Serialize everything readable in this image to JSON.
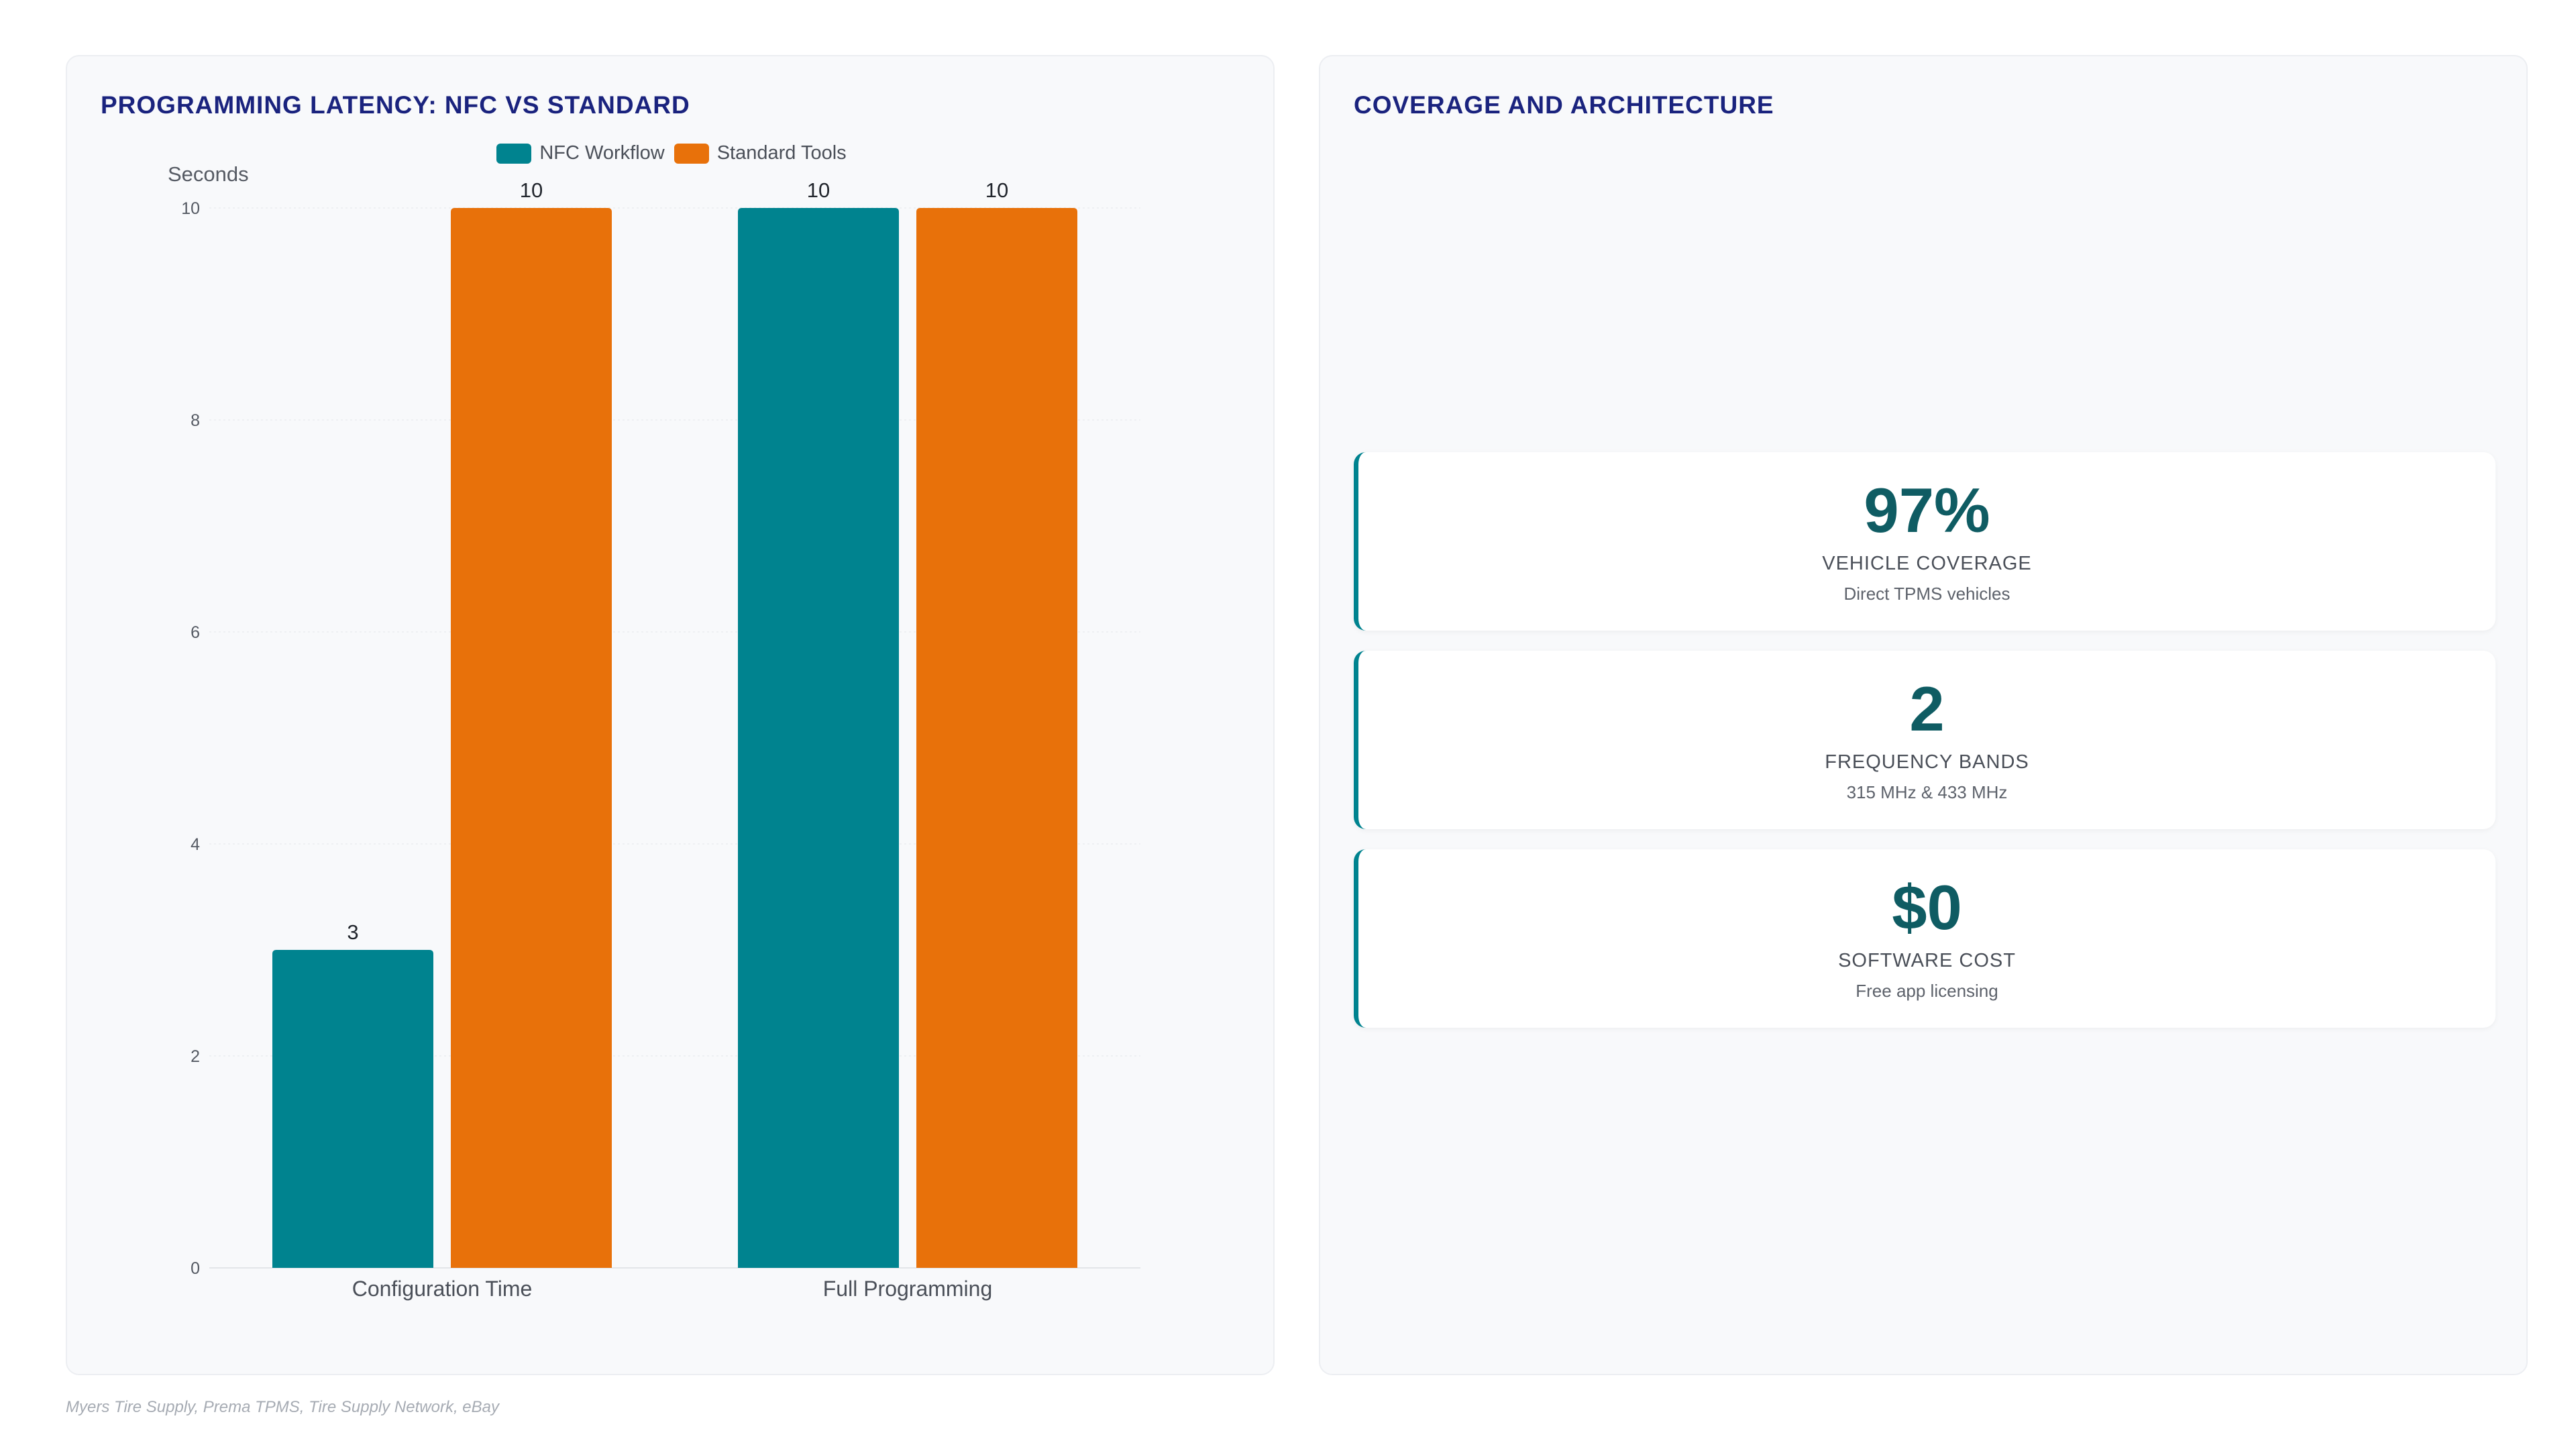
{
  "left_panel": {
    "title": "PROGRAMMING LATENCY: NFC VS STANDARD"
  },
  "right_panel": {
    "title": "COVERAGE AND ARCHITECTURE",
    "kpis": [
      {
        "value": "97%",
        "label": "VEHICLE COVERAGE",
        "sub": "Direct TPMS vehicles"
      },
      {
        "value": "2",
        "label": "FREQUENCY BANDS",
        "sub": "315 MHz & 433 MHz"
      },
      {
        "value": "$0",
        "label": "SOFTWARE COST",
        "sub": "Free app licensing"
      }
    ],
    "accent_color": "#00838f"
  },
  "footer": {
    "sources": "Myers Tire Supply, Prema TPMS, Tire Supply Network, eBay"
  },
  "chart_data": {
    "type": "bar",
    "title": "PROGRAMMING LATENCY: NFC VS STANDARD",
    "categories": [
      "Configuration Time",
      "Full Programming"
    ],
    "series": [
      {
        "name": "NFC Workflow",
        "values": [
          3,
          10
        ],
        "color": "#00838f"
      },
      {
        "name": "Standard Tools",
        "values": [
          10,
          10
        ],
        "color": "#e8710a"
      }
    ],
    "xlabel": "",
    "ylabel": "Seconds",
    "ylim": [
      0,
      10
    ],
    "yticks": [
      0,
      2,
      4,
      6,
      8,
      10
    ],
    "grid": true,
    "legend_position": "top-center",
    "data_labels": true
  }
}
